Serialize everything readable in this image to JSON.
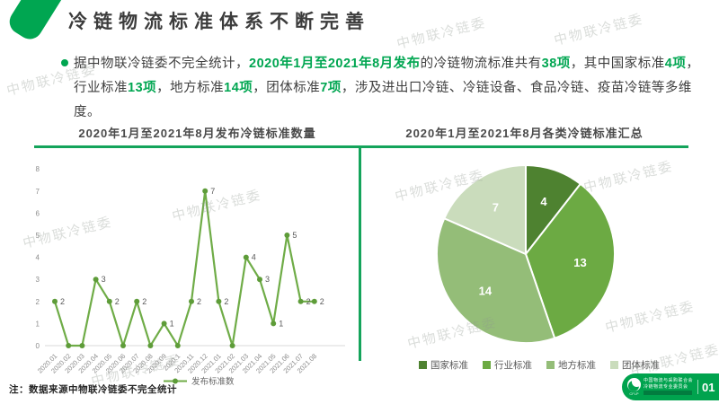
{
  "page": {
    "title": "冷链物流标准体系不断完善",
    "note": "注：数据来源中物联冷链委不完全统计",
    "watermark": "中物联冷链委"
  },
  "intro": {
    "segments": [
      {
        "text": "据中物联冷链委不完全统计，",
        "em": false
      },
      {
        "text": "2020年1月至2021年8月发布",
        "em": true
      },
      {
        "text": "的冷链物流标准共有",
        "em": false
      },
      {
        "text": "38项",
        "em": true
      },
      {
        "text": "，其中国家标准",
        "em": false
      },
      {
        "text": "4项",
        "em": true
      },
      {
        "text": "，行业标准",
        "em": false
      },
      {
        "text": "13项",
        "em": true
      },
      {
        "text": "，地方标准",
        "em": false
      },
      {
        "text": "14项",
        "em": true
      },
      {
        "text": "，团体标准",
        "em": false
      },
      {
        "text": "7项",
        "em": true
      },
      {
        "text": "，涉及进出口冷链、冷链设备、食品冷链、疫苗冷链等多维度。",
        "em": false
      }
    ]
  },
  "colors": {
    "brand_green": "#00A651",
    "rule_green": "#14A45B",
    "line_series": "#6FAC47",
    "line_marker": "#5E9C39",
    "axis_text": "#8c8c8c",
    "data_label": "#595959"
  },
  "chart_data": [
    {
      "type": "line",
      "title": "2020年1月至2021年8月发布冷链标准数量",
      "x": [
        "2020.01",
        "2020.02",
        "2020.03",
        "2020.04",
        "2020.05",
        "2020.06",
        "2020.07",
        "2020.08",
        "2020.09",
        "2020.1",
        "2020.11",
        "2020.12",
        "2021.01",
        "2021.02",
        "2021.03",
        "2021.04",
        "2021.05",
        "2021.06",
        "2021.07",
        "2021.08"
      ],
      "series": [
        {
          "name": "发布标准数",
          "values": [
            2,
            0,
            0,
            3,
            2,
            0,
            2,
            0,
            1,
            0,
            2,
            7,
            2,
            0,
            4,
            3,
            1,
            5,
            2,
            2
          ]
        }
      ],
      "ylim": [
        0,
        8
      ],
      "ytick_step": 1,
      "grid": false,
      "legend_position": "bottom",
      "line_color": "#6FAC47",
      "marker_color": "#5E9C39"
    },
    {
      "type": "pie",
      "title": "2020年1月至2021年8月各类冷链标准汇总",
      "categories": [
        "国家标准",
        "行业标准",
        "地方标准",
        "团体标准"
      ],
      "values": [
        4,
        13,
        14,
        7
      ],
      "colors": [
        "#4E8230",
        "#6CAA43",
        "#94BD78",
        "#CADCBC"
      ],
      "start_angle_deg": 0,
      "direction": "clockwise",
      "legend_position": "bottom",
      "slice_label_color": "#ffffff"
    }
  ],
  "footer_badge": {
    "org_line1": "中国物流与采购联合会",
    "org_line2": "冷链物流专业委员会",
    "abbr": "CFLP",
    "page_number": "01"
  }
}
